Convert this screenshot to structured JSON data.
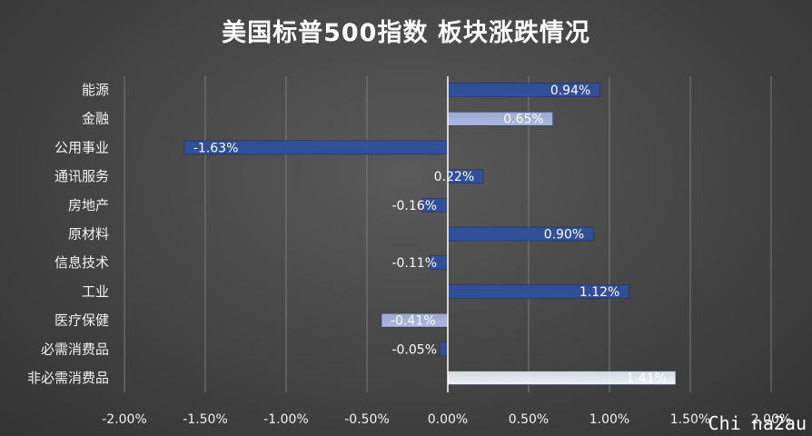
{
  "chart_data": {
    "type": "bar",
    "orientation": "horizontal",
    "title": "美国标普500指数 板块涨跌情况",
    "categories": [
      "能源",
      "金融",
      "公用事业",
      "通讯服务",
      "房地产",
      "原材料",
      "信息技术",
      "工业",
      "医疗保健",
      "必需消费品",
      "非必需消费品"
    ],
    "values": [
      0.94,
      0.65,
      -1.63,
      0.22,
      -0.16,
      0.9,
      -0.11,
      1.12,
      -0.41,
      -0.05,
      1.41
    ],
    "data_labels": [
      "0.94%",
      "0.65%",
      "-1.63%",
      "0.22%",
      "-0.16%",
      "0.90%",
      "-0.11%",
      "1.12%",
      "-0.41%",
      "-0.05%",
      "1.41%"
    ],
    "bar_colors": [
      "#2e4f9e",
      "#aab9e3",
      "#2e4f9e",
      "#2e4f9e",
      "#2e4f9e",
      "#2e4f9e",
      "#2e4f9e",
      "#2e4f9e",
      "#aab9e3",
      "#2e4f9e",
      "#eef1fa"
    ],
    "label_colors": [
      "#ffffff",
      "#ffffff",
      "#ffffff",
      "#ffffff",
      "#ffffff",
      "#ffffff",
      "#ffffff",
      "#ffffff",
      "#ffffff",
      "#ffffff",
      "#ffffff"
    ],
    "xlim": [
      -2.0,
      2.0
    ],
    "x_ticks": [
      -2.0,
      -1.5,
      -1.0,
      -0.5,
      0.0,
      0.5,
      1.0,
      1.5,
      2.0
    ],
    "x_tick_labels": [
      "-2.00%",
      "-1.50%",
      "-1.00%",
      "-0.50%",
      "0.00%",
      "0.50%",
      "1.00%",
      "1.50%",
      "2.00%"
    ],
    "xlabel": "",
    "ylabel": "",
    "grid": "vertical",
    "legend": "none"
  },
  "watermark": "Chi na2au"
}
